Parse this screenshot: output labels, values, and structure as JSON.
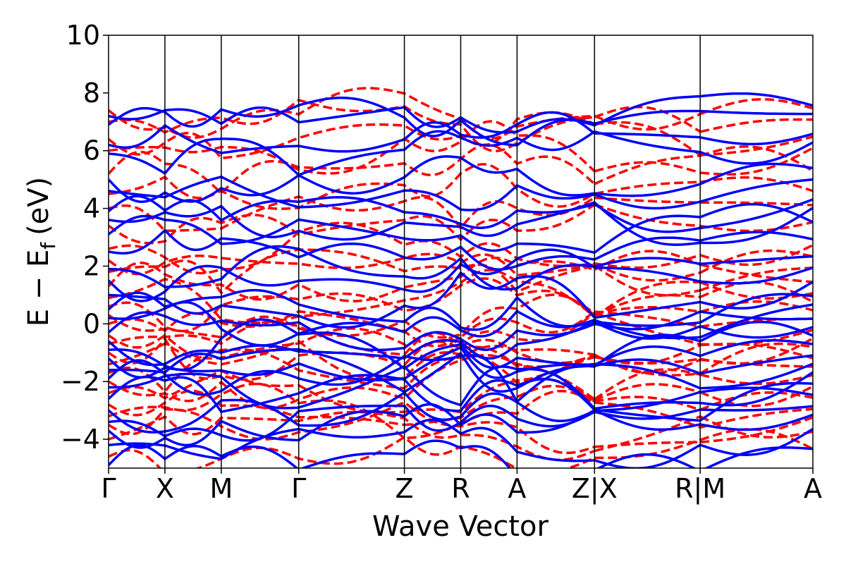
{
  "chart_data": {
    "type": "line",
    "title": "",
    "xlabel": "Wave Vector",
    "ylabel": {
      "main": "E − E",
      "sub": "f",
      "unit": "(eV)"
    },
    "ylim": [
      -5,
      10
    ],
    "yticks": [
      -4,
      -2,
      0,
      2,
      4,
      6,
      8,
      10
    ],
    "ytick_labels": [
      "−4",
      "−2",
      "0",
      "2",
      "4",
      "6",
      "8",
      "10"
    ],
    "grid": false,
    "legend": "none",
    "kpath_segments": [
      {
        "from": "Γ",
        "to": "X"
      },
      {
        "from": "X",
        "to": "M"
      },
      {
        "from": "M",
        "to": "Γ"
      },
      {
        "from": "Γ",
        "to": "Z"
      },
      {
        "from": "Z",
        "to": "R"
      },
      {
        "from": "R",
        "to": "A"
      },
      {
        "from": "A",
        "to": "Z"
      },
      {
        "from": "X",
        "to": "R"
      },
      {
        "from": "M",
        "to": "A"
      }
    ],
    "x_tick_labels": [
      "Γ",
      "X",
      "M",
      "Γ",
      "Z",
      "R",
      "A",
      "Z|X",
      "R|M",
      "A"
    ],
    "x_tick_positions": [
      0,
      0.08,
      0.16,
      0.27,
      0.42,
      0.5,
      0.58,
      0.69,
      0.84,
      1.0
    ],
    "series_styles": [
      {
        "style": "solid",
        "color": "#0000ff"
      },
      {
        "style": "dashed",
        "color": "#ff0000"
      }
    ],
    "bands": {
      "note_values_approximate": true,
      "solid_blue_levels_at_gamma": [
        -4.9,
        -4.2,
        -3.7,
        -3.4,
        -3.0,
        -2.6,
        -2.2,
        -1.9,
        -1.6,
        -1.2,
        -0.9,
        -0.6,
        -0.3,
        0.2,
        0.5,
        1.0,
        1.5,
        1.9,
        2.5,
        3.1,
        3.6,
        3.9,
        4.6,
        5.0,
        5.9,
        6.2,
        6.9,
        7.2
      ],
      "dashed_red_levels_at_gamma": [
        -4.6,
        -4.0,
        -3.5,
        -3.2,
        -2.8,
        -2.4,
        -2.0,
        -1.7,
        -1.4,
        -1.0,
        -0.7,
        -0.4,
        0.0,
        0.3,
        0.6,
        0.9,
        1.3,
        1.8,
        2.2,
        2.6,
        3.4,
        4.0,
        4.5,
        5.2,
        6.0,
        6.4,
        7.0,
        7.4
      ]
    }
  }
}
